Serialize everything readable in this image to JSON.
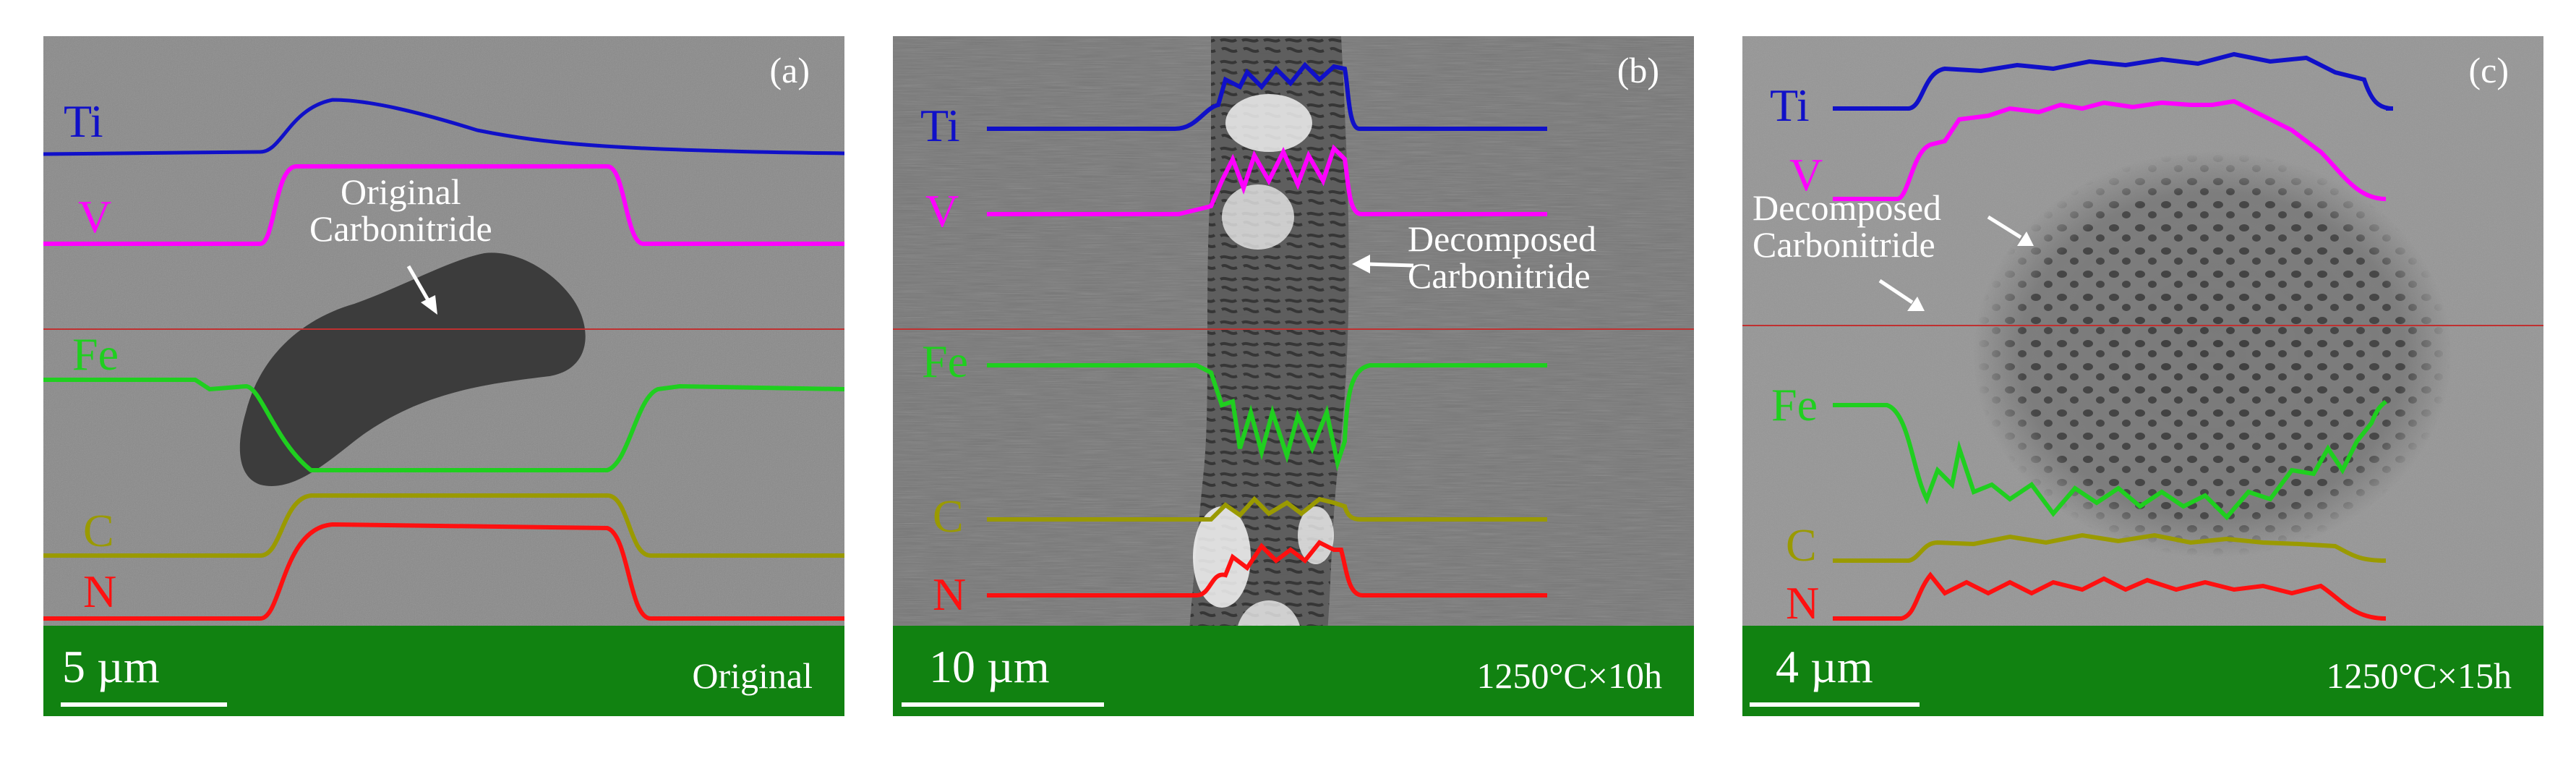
{
  "panels": [
    {
      "letter": "(a)",
      "annotation_lines": [
        "Original",
        "Carbonitride"
      ],
      "scale": "5 µm",
      "condition": "Original",
      "elements": [
        "Ti",
        "V",
        "Fe",
        "C",
        "N"
      ]
    },
    {
      "letter": "(b)",
      "annotation_lines": [
        "Decomposed",
        "Carbonitride"
      ],
      "scale": "10 µm",
      "condition": "1250°C×10h",
      "elements": [
        "Ti",
        "V",
        "Fe",
        "C",
        "N"
      ]
    },
    {
      "letter": "(c)",
      "annotation_lines": [
        "Decomposed",
        "Carbonitride"
      ],
      "scale": "4 µm",
      "condition": "1250°C×15h",
      "elements": [
        "Ti",
        "V",
        "Fe",
        "C",
        "N"
      ]
    }
  ],
  "colors": {
    "Ti": "#1010c8",
    "V": "#ff00ff",
    "Fe": "#1fcf1f",
    "C": "#9a9a00",
    "N": "#ff1010",
    "footer": "#118211",
    "scan_line": "#c03030"
  }
}
